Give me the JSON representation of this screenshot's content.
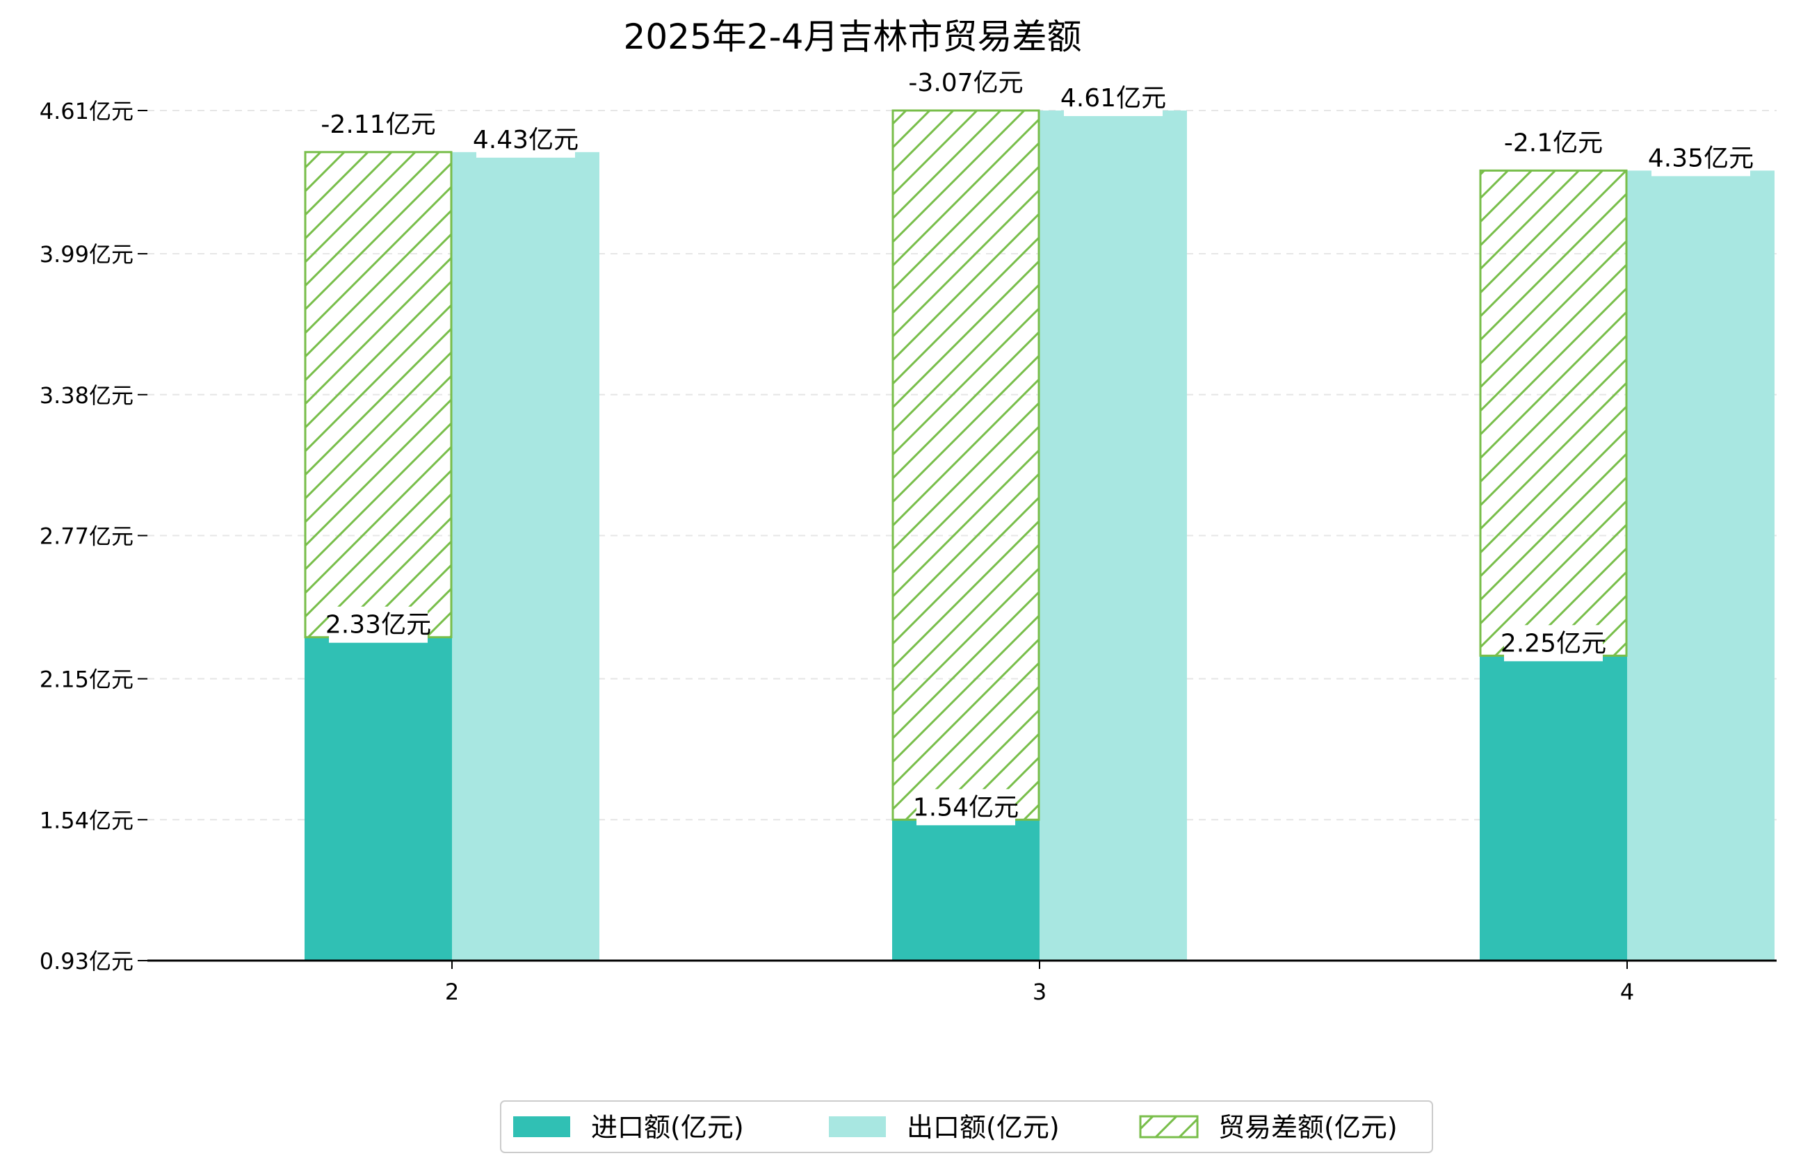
{
  "chart_data": {
    "type": "bar",
    "title": "2025年2-4月吉林市贸易差额",
    "categories": [
      "2",
      "3",
      "4"
    ],
    "y_ticks": [
      {
        "value": 0.93,
        "label": "0.93亿元"
      },
      {
        "value": 1.54,
        "label": "1.54亿元"
      },
      {
        "value": 2.15,
        "label": "2.15亿元"
      },
      {
        "value": 2.77,
        "label": "2.77亿元"
      },
      {
        "value": 3.38,
        "label": "3.38亿元"
      },
      {
        "value": 3.99,
        "label": "3.99亿元"
      },
      {
        "value": 4.61,
        "label": "4.61亿元"
      }
    ],
    "ylim": [
      0.93,
      4.61
    ],
    "grid": "horizontal-dashed",
    "legend_position": "bottom-center",
    "series": [
      {
        "name": "进口额(亿元)",
        "color": "#30c0b4",
        "values": [
          2.33,
          1.54,
          2.25
        ],
        "labels": [
          "2.33亿元",
          "1.54亿元",
          "2.25亿元"
        ]
      },
      {
        "name": "出口额(亿元)",
        "color": "#a8e7e1",
        "values": [
          4.43,
          4.61,
          4.35
        ],
        "labels": [
          "4.43亿元",
          "4.61亿元",
          "4.35亿元"
        ]
      },
      {
        "name": "贸易差额(亿元)",
        "color": "#78be4a",
        "pattern": "hatch",
        "values": [
          -2.11,
          -3.07,
          -2.1
        ],
        "labels": [
          "-2.11亿元",
          "-3.07亿元",
          "-2.1亿元"
        ]
      }
    ]
  }
}
